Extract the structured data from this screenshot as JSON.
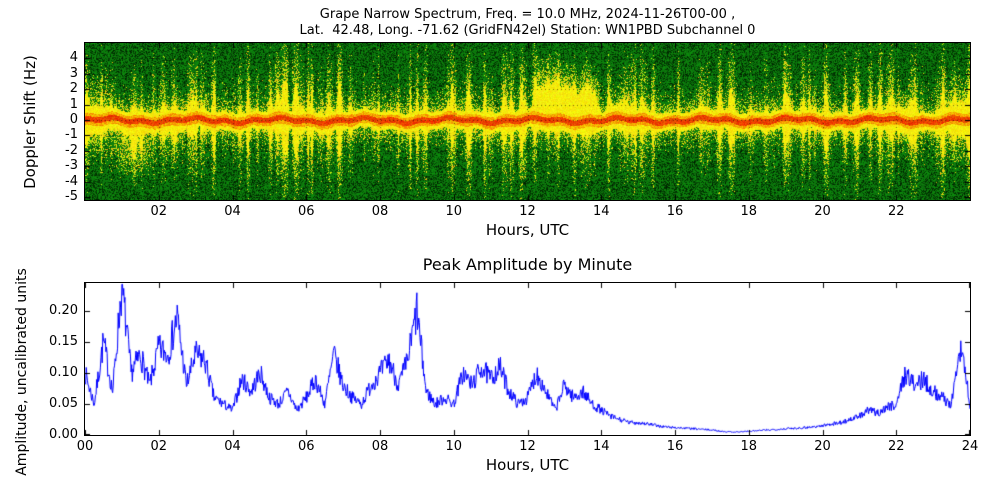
{
  "figure": {
    "background": "#ffffff"
  },
  "chart_data": [
    {
      "type": "heatmap",
      "title_line1": "Grape Narrow Spectrum, Freq. = 10.0 MHz, 2024-11-26T00-00 ,",
      "title_line2": "Lat.  42.48, Long. -71.62 (GridFN42el) Station: WN1PBD Subchannel 0",
      "xlabel": "Hours, UTC",
      "ylabel": "Doppler Shift (Hz)",
      "x_range_hours": [
        0,
        24
      ],
      "y_range_hz": [
        -5.2,
        5.0
      ],
      "xtick_labels": [
        "02",
        "04",
        "06",
        "08",
        "10",
        "12",
        "14",
        "16",
        "18",
        "20",
        "22"
      ],
      "xtick_hours": [
        2,
        4,
        6,
        8,
        10,
        12,
        14,
        16,
        18,
        20,
        22
      ],
      "ytick_labels": [
        "4",
        "3",
        "2",
        "1",
        "0",
        "-1",
        "-2",
        "-3",
        "-4",
        "-5"
      ],
      "ytick_values": [
        4,
        3,
        2,
        1,
        0,
        -1,
        -2,
        -3,
        -4,
        -5
      ],
      "colors": {
        "background_green": "#0c6e0c",
        "speckle_black": "#000000",
        "band_yellow": "#ffff00",
        "core_red": "#e63300"
      },
      "baseline_hz": 0,
      "description": "Doppler spectrogram: green noise field with black pepper speckle, bright yellow band with red core along 0 Hz, scattered vertical yellow streaks, strong broad plumes 12.2-13.9 UTC, downward fan near 01:15, wide band at day edges",
      "features": [
        {
          "t0": 0.0,
          "t1": 0.5,
          "vc": 0.0,
          "sv": 2.0,
          "amp": 0.55
        },
        {
          "t0": 0.9,
          "t1": 1.7,
          "vc": -1.8,
          "sv": 1.6,
          "amp": 0.6
        },
        {
          "t0": 2.2,
          "t1": 2.6,
          "vc": -0.8,
          "sv": 1.4,
          "amp": 0.4
        },
        {
          "t0": 12.2,
          "t1": 13.1,
          "vc": 1.6,
          "sv": 1.8,
          "amp": 0.95
        },
        {
          "t0": 13.1,
          "t1": 13.9,
          "vc": 1.2,
          "sv": 1.5,
          "amp": 0.85
        },
        {
          "t0": 14.2,
          "t1": 14.7,
          "vc": 0.4,
          "sv": 1.1,
          "amp": 0.5
        },
        {
          "t0": 21.9,
          "t1": 22.4,
          "vc": 0.0,
          "sv": 1.4,
          "amp": 0.5
        },
        {
          "t0": 23.4,
          "t1": 24.0,
          "vc": 0.0,
          "sv": 2.2,
          "amp": 0.75
        }
      ]
    },
    {
      "type": "line",
      "title": "Peak Amplitude by Minute",
      "xlabel": "Hours, UTC",
      "ylabel": "Amplitude, uncalibrated units",
      "x_range_hours": [
        0,
        24
      ],
      "y_range": [
        0,
        0.245
      ],
      "xtick_labels": [
        "00",
        "02",
        "04",
        "06",
        "08",
        "10",
        "12",
        "14",
        "16",
        "18",
        "20",
        "22",
        "24"
      ],
      "xtick_hours": [
        0,
        2,
        4,
        6,
        8,
        10,
        12,
        14,
        16,
        18,
        20,
        22,
        24
      ],
      "ytick_labels": [
        "0.00",
        "0.05",
        "0.10",
        "0.15",
        "0.20"
      ],
      "ytick_values": [
        0,
        0.05,
        0.1,
        0.15,
        0.2
      ],
      "line_color": "#0000ff",
      "series": [
        {
          "name": "peak amplitude",
          "x_start_hours": 0,
          "x_step_hours": 0.25,
          "values": [
            0.1,
            0.05,
            0.15,
            0.07,
            0.24,
            0.1,
            0.13,
            0.08,
            0.14,
            0.13,
            0.19,
            0.08,
            0.13,
            0.12,
            0.06,
            0.05,
            0.04,
            0.09,
            0.07,
            0.1,
            0.06,
            0.05,
            0.07,
            0.04,
            0.06,
            0.09,
            0.05,
            0.13,
            0.08,
            0.06,
            0.05,
            0.08,
            0.1,
            0.12,
            0.08,
            0.12,
            0.2,
            0.07,
            0.05,
            0.06,
            0.05,
            0.1,
            0.08,
            0.11,
            0.09,
            0.11,
            0.07,
            0.05,
            0.06,
            0.1,
            0.07,
            0.04,
            0.08,
            0.06,
            0.07,
            0.05,
            0.04,
            0.03,
            0.025,
            0.02,
            0.02,
            0.018,
            0.015,
            0.013,
            0.012,
            0.011,
            0.01,
            0.009,
            0.008,
            0.006,
            0.005,
            0.005,
            0.006,
            0.007,
            0.008,
            0.009,
            0.01,
            0.011,
            0.012,
            0.013,
            0.015,
            0.018,
            0.02,
            0.025,
            0.03,
            0.04,
            0.035,
            0.045,
            0.05,
            0.1,
            0.08,
            0.09,
            0.07,
            0.06,
            0.05,
            0.15,
            0.05
          ]
        }
      ]
    }
  ]
}
